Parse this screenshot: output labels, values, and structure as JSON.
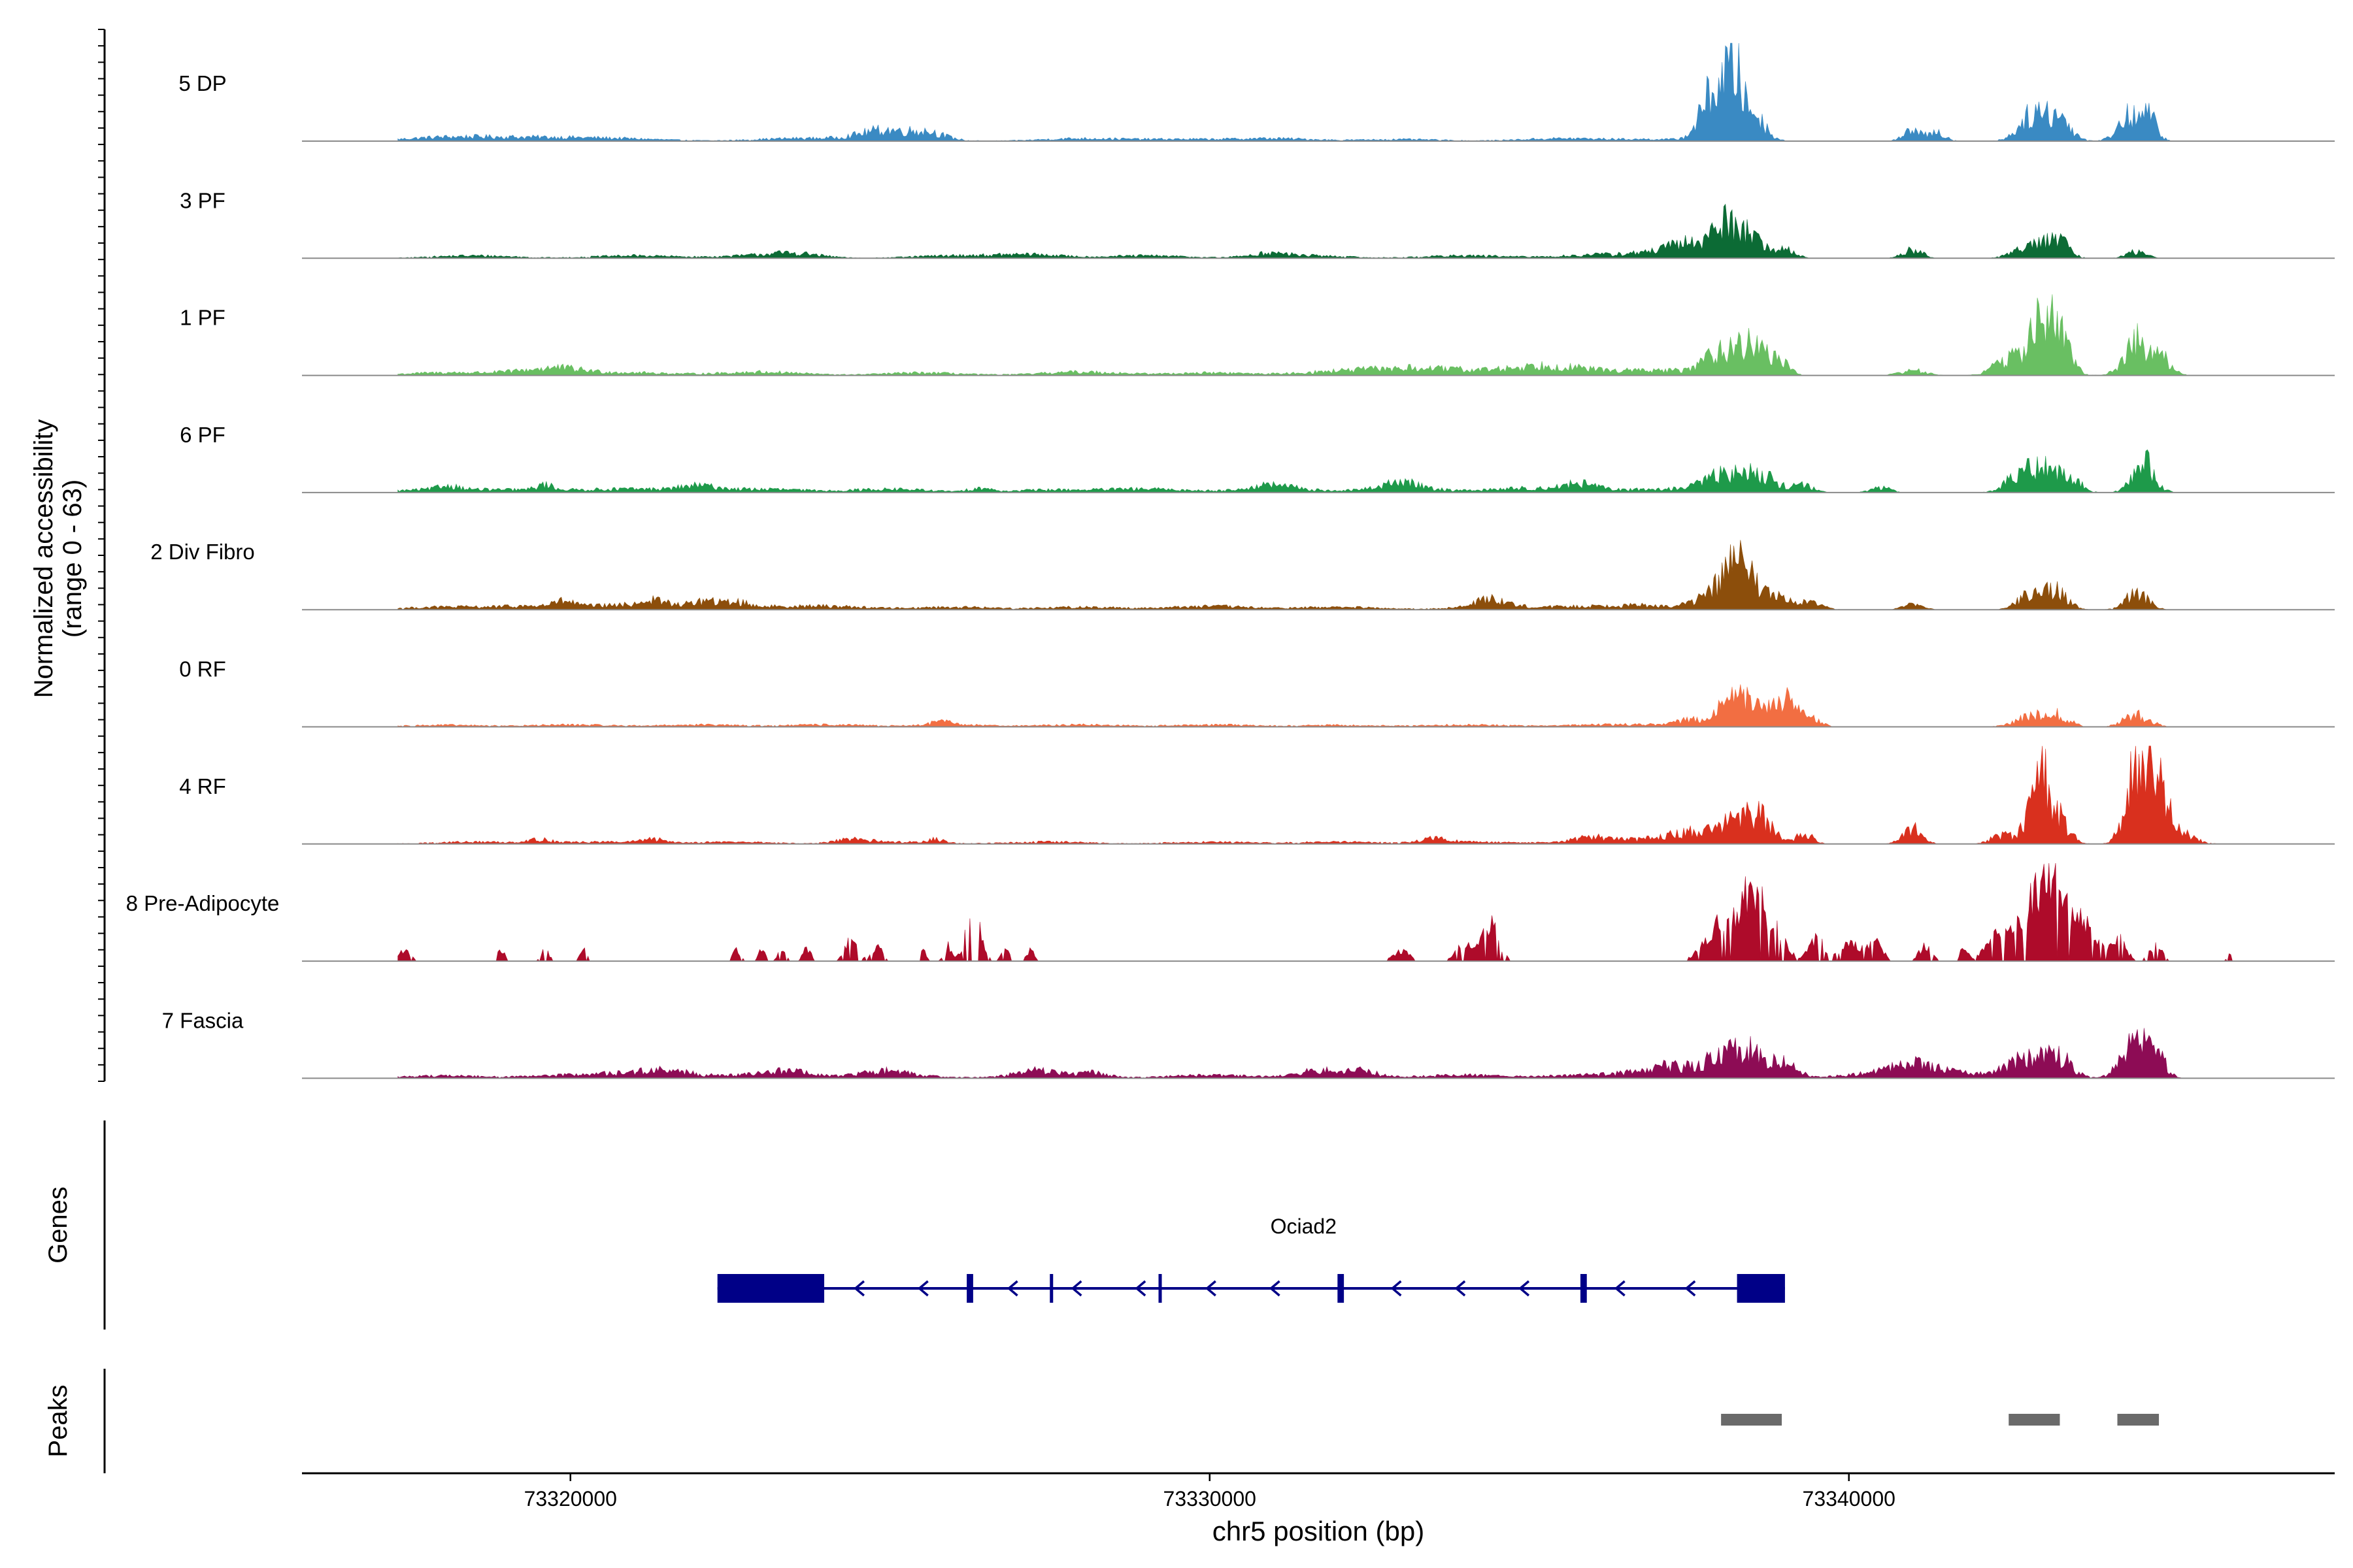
{
  "chart_data": {
    "type": "area",
    "title": "",
    "ylabel": "Normalized accessibility",
    "ylabel_range": "(range 0 - 63)",
    "xlabel": "chr5 position (bp)",
    "xlim": [
      73315800,
      73347600
    ],
    "x_ticks": [
      {
        "value": 73320000,
        "label": "73320000"
      },
      {
        "value": 73330000,
        "label": "73330000"
      },
      {
        "value": 73340000,
        "label": "73340000"
      }
    ],
    "data_extent": [
      73317300,
      73346000
    ],
    "y_max": 63,
    "tracks": [
      {
        "name": "5 DP",
        "color": "#3A8AC3",
        "bg": [
          [
            73318000,
            2
          ],
          [
            73319000,
            1.5
          ],
          [
            73320000,
            1.5
          ],
          [
            73321000,
            1
          ],
          [
            73323500,
            1.5
          ],
          [
            73325000,
            2
          ],
          [
            73328000,
            1.5
          ],
          [
            73329500,
            1
          ],
          [
            73331000,
            1.5
          ],
          [
            73333000,
            1
          ],
          [
            73335500,
            1.5
          ],
          [
            73337000,
            1
          ]
        ],
        "peaks": [
          [
            73324900,
            4.5,
            350
          ],
          [
            73325600,
            4,
            250
          ],
          [
            73337900,
            30,
            200
          ],
          [
            73338200,
            33,
            120
          ],
          [
            73338500,
            16,
            180
          ],
          [
            73341000,
            6,
            150
          ],
          [
            73341400,
            5,
            120
          ],
          [
            73342900,
            16,
            220
          ],
          [
            73343300,
            12,
            180
          ],
          [
            73344400,
            15,
            180
          ],
          [
            73344700,
            12,
            120
          ]
        ]
      },
      {
        "name": "3 PF",
        "color": "#0C6B35",
        "bg": [
          [
            73318500,
            1.5
          ],
          [
            73321000,
            1.5
          ],
          [
            73323000,
            1.5
          ],
          [
            73326000,
            1.5
          ],
          [
            73329000,
            1.5
          ],
          [
            73331500,
            1.5
          ],
          [
            73334000,
            1.5
          ],
          [
            73336000,
            1.5
          ],
          [
            73337000,
            2
          ]
        ],
        "peaks": [
          [
            73323500,
            2,
            400
          ],
          [
            73327200,
            2,
            500
          ],
          [
            73330900,
            2,
            300
          ],
          [
            73337600,
            8,
            400
          ],
          [
            73338100,
            17,
            200
          ],
          [
            73338500,
            12,
            160
          ],
          [
            73339000,
            6,
            150
          ],
          [
            73341000,
            5,
            150
          ],
          [
            73342900,
            10,
            250
          ],
          [
            73343300,
            8,
            150
          ],
          [
            73344500,
            4,
            150
          ]
        ]
      },
      {
        "name": "1 PF",
        "color": "#69BF62",
        "bg": [
          [
            73318000,
            1.5
          ],
          [
            73319500,
            2
          ],
          [
            73321000,
            1.5
          ],
          [
            73323000,
            2
          ],
          [
            73325500,
            1.5
          ],
          [
            73328000,
            2
          ],
          [
            73330000,
            1.5
          ],
          [
            73332000,
            2
          ],
          [
            73334000,
            2.5
          ],
          [
            73336000,
            2
          ],
          [
            73337200,
            2.5
          ]
        ],
        "peaks": [
          [
            73319800,
            2.5,
            400
          ],
          [
            73333000,
            3,
            600
          ],
          [
            73335200,
            4.5,
            500
          ],
          [
            73338000,
            14,
            240
          ],
          [
            73338500,
            17,
            200
          ],
          [
            73338900,
            8,
            150
          ],
          [
            73341000,
            3,
            200
          ],
          [
            73342500,
            10,
            220
          ],
          [
            73343000,
            31,
            170
          ],
          [
            73343300,
            20,
            170
          ],
          [
            73344500,
            20,
            190
          ],
          [
            73344900,
            9,
            150
          ]
        ]
      },
      {
        "name": "6 PF",
        "color": "#1E9A4A",
        "bg": [
          [
            73318000,
            2
          ],
          [
            73319500,
            1.5
          ],
          [
            73321000,
            2
          ],
          [
            73323000,
            2
          ],
          [
            73325000,
            2
          ],
          [
            73327500,
            1.5
          ],
          [
            73329000,
            2
          ],
          [
            73331000,
            2
          ],
          [
            73333000,
            2
          ],
          [
            73335000,
            2.5
          ],
          [
            73337000,
            2
          ]
        ],
        "peaks": [
          [
            73318100,
            2,
            150
          ],
          [
            73319600,
            3,
            120
          ],
          [
            73322000,
            3,
            300
          ],
          [
            73326400,
            2.5,
            150
          ],
          [
            73331000,
            2.5,
            300
          ],
          [
            73333000,
            4,
            300
          ],
          [
            73335800,
            4,
            250
          ],
          [
            73338000,
            9,
            300
          ],
          [
            73338600,
            10,
            280
          ],
          [
            73339300,
            4,
            150
          ],
          [
            73340500,
            3,
            150
          ],
          [
            73342700,
            11,
            220
          ],
          [
            73343100,
            14,
            180
          ],
          [
            73343500,
            7,
            150
          ],
          [
            73344600,
            18,
            170
          ]
        ]
      },
      {
        "name": "2 Div Fibro",
        "color": "#8C4E0B",
        "bg": [
          [
            73318000,
            1.5
          ],
          [
            73319500,
            2
          ],
          [
            73321000,
            2.5
          ],
          [
            73322500,
            2
          ],
          [
            73324000,
            2
          ],
          [
            73326000,
            1.5
          ],
          [
            73328000,
            1.5
          ],
          [
            73330000,
            2
          ],
          [
            73332000,
            1.5
          ],
          [
            73334500,
            2
          ],
          [
            73336000,
            1.5
          ],
          [
            73337000,
            2
          ]
        ],
        "peaks": [
          [
            73319900,
            3,
            150
          ],
          [
            73321300,
            3,
            200
          ],
          [
            73322100,
            3,
            200
          ],
          [
            73322600,
            2.5,
            150
          ],
          [
            73334400,
            5,
            200
          ],
          [
            73338000,
            12,
            280
          ],
          [
            73338300,
            23,
            180
          ],
          [
            73338800,
            9,
            220
          ],
          [
            73339400,
            4,
            180
          ],
          [
            73341000,
            3,
            150
          ],
          [
            73342900,
            12,
            200
          ],
          [
            73343300,
            9,
            150
          ],
          [
            73344500,
            10,
            170
          ]
        ]
      },
      {
        "name": "0 RF",
        "color": "#F26E42",
        "bg": [
          [
            73318000,
            1
          ],
          [
            73320000,
            1.2
          ],
          [
            73322000,
            1.2
          ],
          [
            73324000,
            1.2
          ],
          [
            73326000,
            1.2
          ],
          [
            73328000,
            1.2
          ],
          [
            73330000,
            1.2
          ],
          [
            73332000,
            1
          ],
          [
            73334000,
            1.2
          ],
          [
            73336000,
            1
          ],
          [
            73337200,
            1.2
          ]
        ],
        "peaks": [
          [
            73325800,
            2,
            150
          ],
          [
            73337500,
            3,
            200
          ],
          [
            73338200,
            17,
            220
          ],
          [
            73338600,
            10,
            170
          ],
          [
            73339000,
            15,
            170
          ],
          [
            73339400,
            5,
            150
          ],
          [
            73342900,
            7,
            250
          ],
          [
            73343300,
            5,
            180
          ],
          [
            73344500,
            7,
            200
          ]
        ]
      },
      {
        "name": "4 RF",
        "color": "#D9301E",
        "bg": [
          [
            73318500,
            1.2
          ],
          [
            73320500,
            1.2
          ],
          [
            73322500,
            1.2
          ],
          [
            73325000,
            1.2
          ],
          [
            73327500,
            1.2
          ],
          [
            73330000,
            1.2
          ],
          [
            73332000,
            1.2
          ],
          [
            73334000,
            1.2
          ],
          [
            73336000,
            1.5
          ],
          [
            73337300,
            2
          ]
        ],
        "peaks": [
          [
            73319500,
            2,
            200
          ],
          [
            73321300,
            2,
            200
          ],
          [
            73324400,
            2,
            250
          ],
          [
            73325700,
            2,
            150
          ],
          [
            73333500,
            2.5,
            200
          ],
          [
            73336000,
            2.5,
            250
          ],
          [
            73337500,
            5,
            400
          ],
          [
            73338200,
            10,
            250
          ],
          [
            73338600,
            14,
            200
          ],
          [
            73339300,
            6,
            130
          ],
          [
            73341000,
            9,
            150
          ],
          [
            73342400,
            5,
            180
          ],
          [
            73343000,
            38,
            170
          ],
          [
            73343300,
            10,
            170
          ],
          [
            73344500,
            40,
            170
          ],
          [
            73344800,
            40,
            160
          ],
          [
            73345200,
            6,
            200
          ]
        ]
      },
      {
        "name": "8 Pre-Adipocyte",
        "color": "#AE0B2A",
        "bg": [],
        "peaks": [
          [
            73317400,
            6,
            90
          ],
          [
            73318900,
            7,
            60
          ],
          [
            73319600,
            7,
            60
          ],
          [
            73320200,
            6,
            60
          ],
          [
            73322600,
            6,
            60
          ],
          [
            73323000,
            7,
            60
          ],
          [
            73323300,
            7,
            60
          ],
          [
            73323700,
            7,
            60
          ],
          [
            73324400,
            12,
            100
          ],
          [
            73324800,
            8,
            80
          ],
          [
            73325500,
            6,
            60
          ],
          [
            73325900,
            9,
            60
          ],
          [
            73326300,
            28,
            110
          ],
          [
            73326800,
            7,
            60
          ],
          [
            73327200,
            6,
            60
          ],
          [
            73333000,
            6,
            120
          ],
          [
            73334000,
            10,
            140
          ],
          [
            73334400,
            22,
            120
          ],
          [
            73338000,
            22,
            230
          ],
          [
            73338500,
            38,
            190
          ],
          [
            73338900,
            12,
            150
          ],
          [
            73339500,
            12,
            120
          ],
          [
            73340000,
            10,
            150
          ],
          [
            73340400,
            11,
            120
          ],
          [
            73341200,
            8,
            100
          ],
          [
            73341800,
            8,
            60
          ],
          [
            73342300,
            18,
            150
          ],
          [
            73342800,
            26,
            200
          ],
          [
            73343200,
            42,
            200
          ],
          [
            73343700,
            20,
            180
          ],
          [
            73344200,
            14,
            120
          ],
          [
            73344800,
            8,
            100
          ],
          [
            73346000,
            6,
            60
          ]
        ]
      },
      {
        "name": "7 Fascia",
        "color": "#8D0C55",
        "bg": [
          [
            73318000,
            1.5
          ],
          [
            73320000,
            1.5
          ],
          [
            73321000,
            2
          ],
          [
            73323000,
            2
          ],
          [
            73325000,
            2
          ],
          [
            73327500,
            1.8
          ],
          [
            73330000,
            1.8
          ],
          [
            73332000,
            2
          ],
          [
            73334000,
            1.8
          ],
          [
            73336000,
            2
          ],
          [
            73337300,
            3
          ],
          [
            73340500,
            2.5
          ],
          [
            73341500,
            3
          ]
        ],
        "peaks": [
          [
            73321500,
            3,
            400
          ],
          [
            73323400,
            3,
            300
          ],
          [
            73324900,
            2.5,
            300
          ],
          [
            73327300,
            3,
            300
          ],
          [
            73328200,
            2.5,
            200
          ],
          [
            73331700,
            3,
            300
          ],
          [
            73332400,
            2.5,
            200
          ],
          [
            73337100,
            4,
            300
          ],
          [
            73338000,
            10,
            300
          ],
          [
            73338500,
            14,
            250
          ],
          [
            73339000,
            7,
            200
          ],
          [
            73341000,
            5,
            300
          ],
          [
            73342800,
            12,
            300
          ],
          [
            73343300,
            10,
            200
          ],
          [
            73344500,
            20,
            220
          ],
          [
            73344800,
            10,
            150
          ]
        ]
      }
    ],
    "genes_label": "Genes",
    "gene": {
      "name": "Ociad2",
      "span": [
        73322300,
        73339000
      ],
      "utr_blocks": [
        [
          73322300,
          73323970
        ],
        [
          73338250,
          73339000
        ]
      ],
      "exons": [
        [
          73326200,
          73326300
        ],
        [
          73327500,
          73327540
        ],
        [
          73329200,
          73329250
        ],
        [
          73332000,
          73332100
        ],
        [
          73335800,
          73335900
        ]
      ],
      "direction_marks": [
        73324500,
        73325500,
        73326900,
        73327900,
        73328900,
        73330000,
        73331000,
        73332900,
        73333900,
        73334900,
        73336400,
        73337500
      ],
      "color": "#000087"
    },
    "peaks_label": "Peaks",
    "peak_regions": [
      [
        73338000,
        73338950
      ],
      [
        73342500,
        73343300
      ],
      [
        73344200,
        73344850
      ]
    ],
    "peak_region_color": "#6A6A6A"
  }
}
